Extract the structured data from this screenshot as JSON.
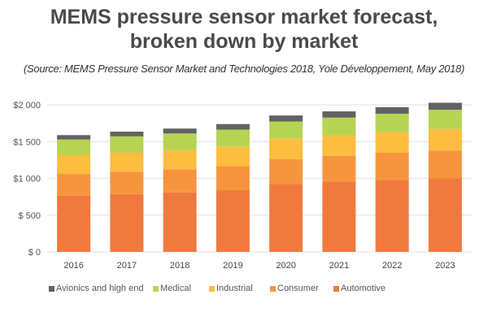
{
  "chart_data": {
    "type": "bar",
    "stacked": true,
    "title": [
      "MEMS pressure sensor market forecast,",
      "broken down by market"
    ],
    "subtitle": "(Source: MEMS Pressure Sensor Market and Technologies 2018, Yole Développement, May 2018)",
    "categories": [
      "2016",
      "2017",
      "2018",
      "2019",
      "2020",
      "2021",
      "2022",
      "2023"
    ],
    "ylim": [
      0,
      2000
    ],
    "yticks": [
      0,
      500,
      1000,
      1500,
      2000
    ],
    "ytick_labels": [
      "$ 0",
      "$ 500",
      "$1 000",
      "$1 500",
      "$2 000"
    ],
    "grid": true,
    "legend_position": "bottom",
    "series": [
      {
        "name": "Automotive",
        "color": "#f07a3e",
        "values": [
          765,
          787,
          809,
          840,
          926,
          957,
          979,
          1000
        ]
      },
      {
        "name": "Consumer",
        "color": "#f7953f",
        "values": [
          295,
          305,
          315,
          327,
          336,
          348,
          369,
          379
        ]
      },
      {
        "name": "Industrial",
        "color": "#fdbd40",
        "values": [
          255,
          256,
          259,
          266,
          277,
          280,
          283,
          291
        ]
      },
      {
        "name": "Medical",
        "color": "#b6d452",
        "values": [
          213,
          223,
          227,
          230,
          234,
          241,
          248,
          263
        ]
      },
      {
        "name": "Avionics and high end",
        "color": "#616363",
        "values": [
          60,
          64,
          67,
          75,
          82,
          85,
          89,
          95
        ]
      }
    ],
    "legend_order": [
      4,
      3,
      2,
      1,
      0
    ]
  }
}
